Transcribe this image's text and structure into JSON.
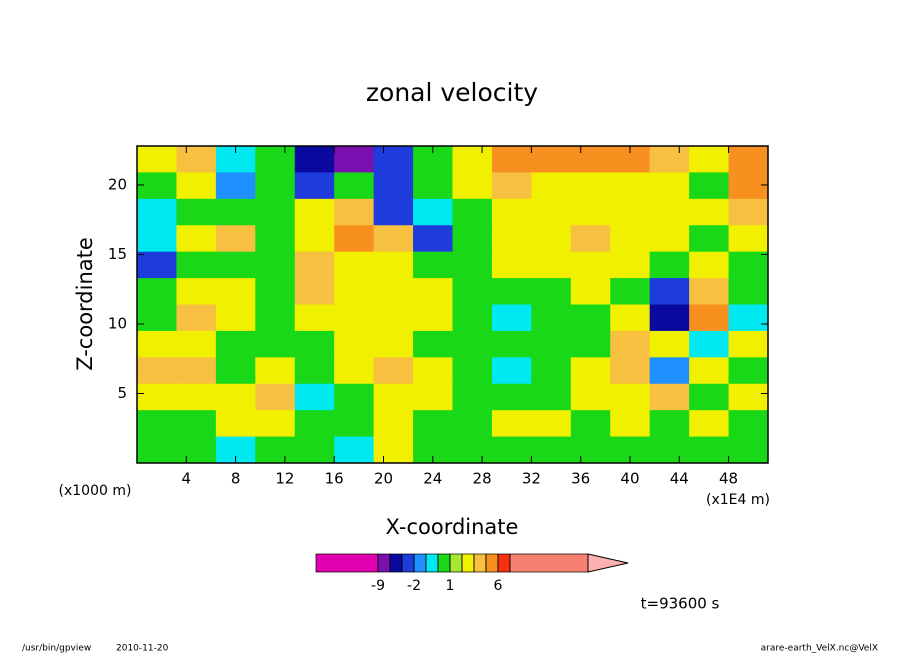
{
  "chart_data": {
    "type": "contour",
    "title": "zonal velocity",
    "x_label": "X-coordinate",
    "y_label": "Z-coordinate",
    "x_units": "(x1E4 m)",
    "y_units": "(x1000 m)",
    "time_label": "t=93600 s",
    "footer_program": "/usr/bin/gpview",
    "footer_date": "2010-11-20",
    "footer_file": "arare-earth_VelX.nc@VelX",
    "xlim": [
      0,
      51.2
    ],
    "ylim": [
      0,
      22.8
    ],
    "xticks": [
      4,
      8,
      12,
      16,
      20,
      24,
      28,
      32,
      36,
      40,
      44,
      48
    ],
    "yticks": [
      5,
      10,
      15,
      20
    ],
    "x": [
      1.6,
      4.8,
      8,
      11.2,
      14.4,
      17.6,
      20.8,
      24,
      27.2,
      30.4,
      33.6,
      36.8,
      40,
      43.2,
      46.4,
      49.6
    ],
    "y": [
      21.85,
      19.95,
      18.05,
      16.15,
      14.25,
      12.35,
      10.45,
      8.55,
      6.65,
      4.75,
      2.85,
      0.95
    ],
    "z": [
      [
        2.5,
        3.5,
        -0.5,
        0.5,
        -4,
        -7,
        -3,
        0.5,
        2.5,
        4.5,
        4.5,
        5,
        5,
        3.5,
        2.5,
        5
      ],
      [
        0.5,
        2.5,
        -1.5,
        0.5,
        -2.5,
        0.5,
        -2.5,
        0.5,
        2.5,
        3.5,
        2.5,
        2.5,
        2.5,
        2.5,
        0.5,
        4.5
      ],
      [
        -0.5,
        0.5,
        0.5,
        0.5,
        2.5,
        3.5,
        -2.5,
        -0.5,
        0.5,
        2.5,
        2.5,
        2.5,
        2.5,
        2.5,
        2.5,
        3.5
      ],
      [
        -0.5,
        2.5,
        3.5,
        0.5,
        2.5,
        4.5,
        3.5,
        -2.5,
        0.5,
        2.5,
        2.5,
        3.5,
        2.5,
        2.5,
        0.5,
        2.5
      ],
      [
        -2.5,
        0.5,
        0.5,
        0.5,
        3.5,
        2.5,
        2.5,
        0.5,
        0.5,
        2.5,
        2.5,
        2.5,
        2.5,
        0.5,
        2.5,
        0.5
      ],
      [
        0.5,
        2.5,
        2.5,
        0.5,
        3.5,
        2.5,
        2.5,
        2.5,
        0.5,
        0.5,
        0.5,
        2.5,
        0.5,
        -2.5,
        3.5,
        0.5
      ],
      [
        0.5,
        3.5,
        2.5,
        0.5,
        2.5,
        2.5,
        2.5,
        2.5,
        0.5,
        -0.5,
        0.5,
        0.5,
        2.5,
        -4,
        4.5,
        -0.5
      ],
      [
        2.5,
        2.5,
        0.5,
        0.5,
        0.5,
        2.5,
        2.5,
        0.5,
        0.5,
        0.5,
        0.5,
        0.5,
        3.5,
        2.5,
        -0.5,
        2.5
      ],
      [
        3.5,
        3.5,
        0.5,
        2.5,
        0.5,
        2.5,
        3.5,
        2.5,
        0.5,
        -0.5,
        0.5,
        2.5,
        3.5,
        -1.5,
        2.5,
        0.5
      ],
      [
        2.5,
        2.5,
        2.5,
        3.5,
        -0.5,
        0.5,
        2.5,
        2.5,
        0.5,
        0.5,
        0.5,
        2.5,
        2.5,
        3.5,
        0.5,
        2.5
      ],
      [
        0.5,
        0.5,
        2.5,
        2.5,
        0.5,
        0.5,
        2.5,
        0.5,
        0.5,
        2.5,
        2.5,
        0.5,
        2.5,
        0.5,
        2.5,
        0.5
      ],
      [
        0.5,
        0.5,
        -0.5,
        0.5,
        0.5,
        -0.5,
        2.5,
        0.5,
        0.5,
        0.5,
        0.5,
        0.5,
        0.5,
        0.5,
        0.5,
        0.5
      ]
    ],
    "colorbar": {
      "levels": [
        -9,
        -6,
        -3,
        -2,
        -1,
        0,
        1,
        2,
        3,
        4,
        6,
        9,
        12
      ],
      "colors": [
        "#e000b0",
        "#7a10b0",
        "#0a0aa0",
        "#1e3cdc",
        "#1e90ff",
        "#00e8f0",
        "#18d818",
        "#a8e830",
        "#f0f000",
        "#f8c040",
        "#f89020",
        "#f83010",
        "#f88070",
        "#ffb0b0"
      ],
      "ticks": [
        -9,
        -2,
        1,
        6
      ]
    }
  }
}
